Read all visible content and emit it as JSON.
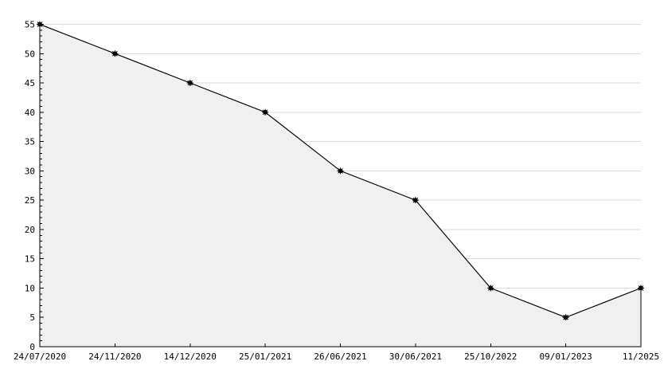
{
  "chart_data": {
    "type": "area",
    "title": "",
    "xlabel": "",
    "ylabel": "",
    "categories": [
      "24/07/2020",
      "24/11/2020",
      "14/12/2020",
      "25/01/2021",
      "26/06/2021",
      "30/06/2021",
      "25/10/2022",
      "09/01/2023",
      "11/2025"
    ],
    "values": [
      55,
      50,
      45,
      40,
      30,
      25,
      10,
      5,
      10
    ],
    "ylim": [
      0,
      55
    ],
    "y_ticks": [
      0,
      5,
      10,
      15,
      20,
      25,
      30,
      35,
      40,
      45,
      50,
      55
    ],
    "y_minor_step": 1,
    "grid": "horizontal-majors",
    "legend": "none",
    "marker": "star-dot",
    "colors": {
      "line": "#000000",
      "fill": "#f0f0f0",
      "grid": "#dcdcdc",
      "axis": "#000000",
      "text": "#000000",
      "background": "#ffffff"
    }
  }
}
